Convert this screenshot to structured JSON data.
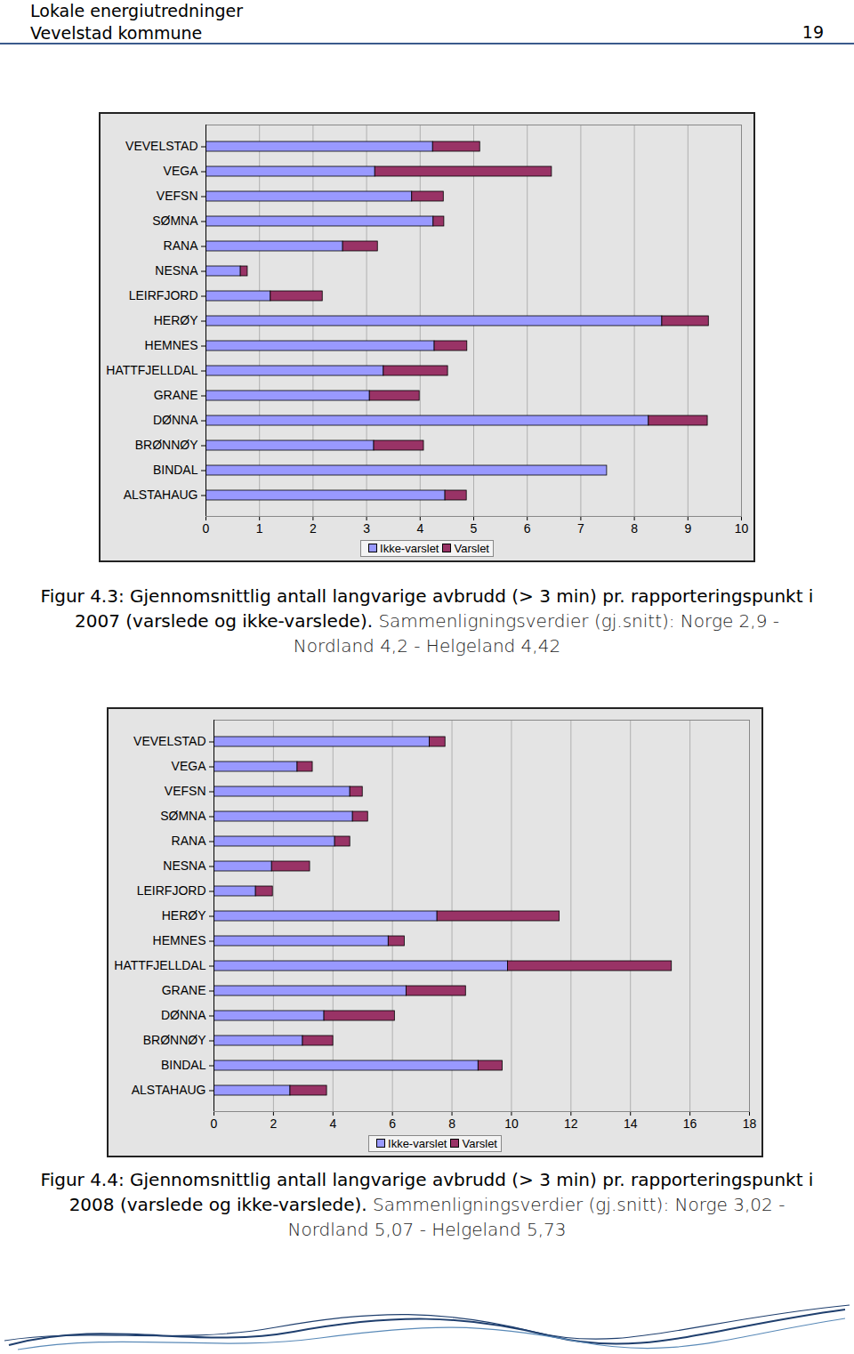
{
  "header": {
    "lines": [
      "Lokale energiutredninger",
      "Vevelstad kommune"
    ],
    "page_number": "19"
  },
  "chart_data": [
    {
      "type": "bar",
      "orientation": "horizontal",
      "stacked": true,
      "grid": true,
      "legend": "bottom",
      "title": "Figur 4.3: Gjennomsnittlig antall langvarige avbrudd (> 3 min) pr. rapporteringspunkt i 2007 (varslede og ikke-varslede).",
      "subtitle": "Sammenligningsverdier (gj.snitt): Norge 2,9 - Nordland 4,2 - Helgeland 4,42",
      "categories": [
        "VEVELSTAD",
        "VEGA",
        "VEFSN",
        "SØMNA",
        "RANA",
        "NESNA",
        "LEIRFJORD",
        "HERØY",
        "HEMNES",
        "HATTFJELLDAL",
        "GRANE",
        "DØNNA",
        "BRØNNØY",
        "BINDAL",
        "ALSTAHAUG"
      ],
      "series": [
        {
          "name": "Ikke-varslet",
          "color": "#9999ff",
          "values": [
            4.24,
            3.16,
            3.85,
            4.25,
            2.56,
            0.65,
            1.21,
            8.52,
            4.27,
            3.32,
            3.06,
            8.27,
            3.14,
            7.49,
            4.47
          ]
        },
        {
          "name": "Varslet",
          "color": "#993366",
          "values": [
            0.88,
            3.3,
            0.59,
            0.2,
            0.65,
            0.13,
            0.97,
            0.87,
            0.61,
            1.2,
            0.93,
            1.1,
            0.93,
            0,
            0.4
          ]
        }
      ],
      "xlim": [
        0,
        10
      ],
      "xticks": [
        0,
        1,
        2,
        3,
        4,
        5,
        6,
        7,
        8,
        9,
        10
      ]
    },
    {
      "type": "bar",
      "orientation": "horizontal",
      "stacked": true,
      "grid": true,
      "legend": "bottom",
      "title": "Figur 4.4: Gjennomsnittlig antall langvarige avbrudd (> 3 min) pr. rapporteringspunkt i 2008 (varslede og ikke-varslede).",
      "subtitle": "Sammenligningsverdier (gj.snitt): Norge 3,02 - Nordland 5,07 - Helgeland 5,73",
      "categories": [
        "VEVELSTAD",
        "VEGA",
        "VEFSN",
        "SØMNA",
        "RANA",
        "NESNA",
        "LEIRFJORD",
        "HERØY",
        "HEMNES",
        "HATTFJELLDAL",
        "GRANE",
        "DØNNA",
        "BRØNNØY",
        "BINDAL",
        "ALSTAHAUG"
      ],
      "series": [
        {
          "name": "Ikke-varslet",
          "color": "#9999ff",
          "values": [
            7.25,
            2.81,
            4.58,
            4.67,
            4.07,
            1.95,
            1.41,
            7.51,
            5.87,
            9.88,
            6.47,
            3.71,
            2.99,
            8.89,
            2.57
          ]
        },
        {
          "name": "Varslet",
          "color": "#993366",
          "values": [
            0.53,
            0.51,
            0.42,
            0.51,
            0.51,
            1.28,
            0.57,
            4.11,
            0.54,
            5.51,
            2.0,
            2.37,
            1.02,
            0.81,
            1.23
          ]
        }
      ],
      "xlim": [
        0,
        18
      ],
      "xticks": [
        0,
        2,
        4,
        6,
        8,
        10,
        12,
        14,
        16,
        18
      ]
    }
  ]
}
